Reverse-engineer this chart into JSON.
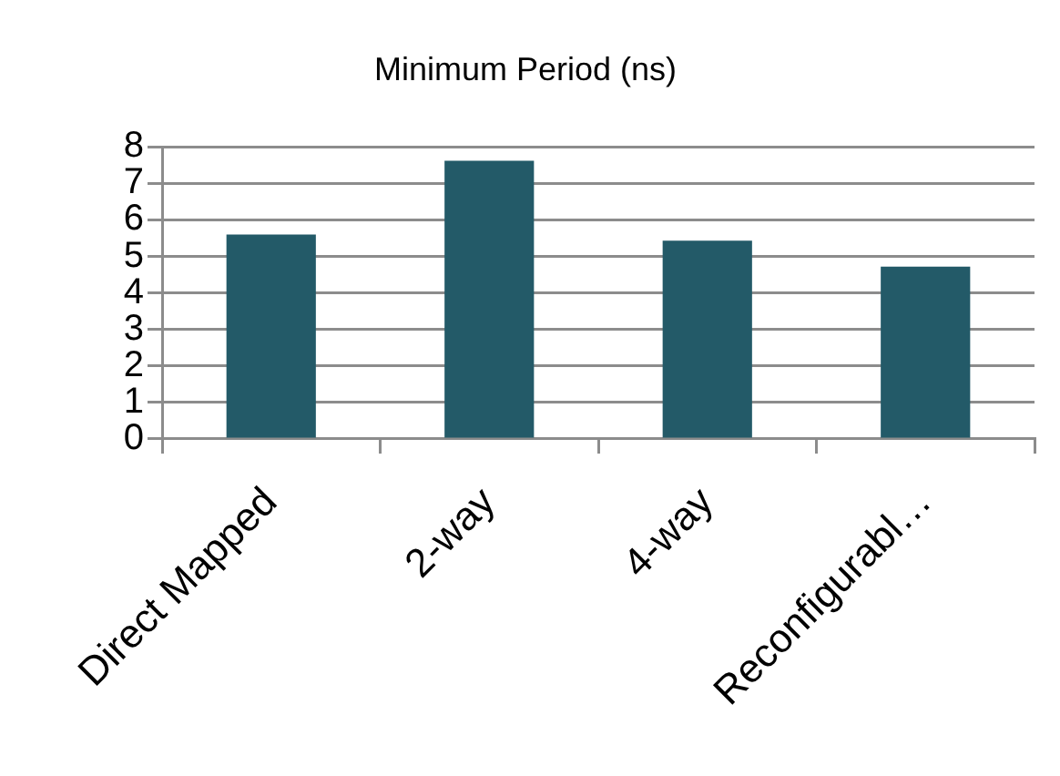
{
  "chart_data": {
    "type": "bar",
    "title": "Minimum Period (ns)",
    "categories": [
      "Direct Mapped",
      "2-way",
      "4-way",
      "Reconfigurabl…"
    ],
    "values": [
      5.6,
      7.62,
      5.43,
      4.72
    ],
    "color": "#235a68",
    "ylim": [
      0,
      8
    ],
    "yticks": [
      0,
      1,
      2,
      3,
      4,
      5,
      6,
      7,
      8
    ],
    "grid": "y",
    "legend": false
  }
}
